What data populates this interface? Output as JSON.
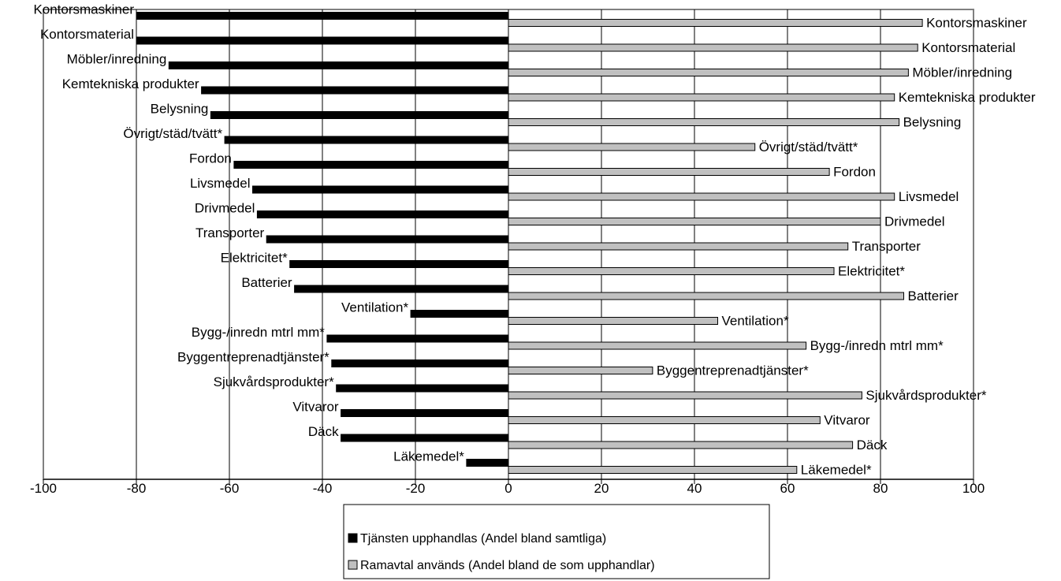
{
  "chart_data": {
    "type": "bar",
    "orientation": "horizontal",
    "grid": true,
    "xlim": [
      -100,
      100
    ],
    "x_ticks": [
      "-100",
      "-80",
      "-60",
      "-40",
      "-20",
      "0",
      "20",
      "40",
      "60",
      "80",
      "100"
    ],
    "legend_position": "bottom-center",
    "categories": [
      "Kontorsmaskiner",
      "Kontorsmaterial",
      "Möbler/inredning",
      "Kemtekniska produkter",
      "Belysning",
      "Övrigt/städ/tvätt*",
      "Fordon",
      "Livsmedel",
      "Drivmedel",
      "Transporter",
      "Elektricitet*",
      "Batterier",
      "Ventilation*",
      "Bygg-/inredn mtrl mm*",
      "Byggentreprenadtjänster*",
      "Sjukvårdsprodukter*",
      "Vitvaror",
      "Däck",
      "Läkemedel*"
    ],
    "series": [
      {
        "name": "Tjänsten upphandlas (Andel bland samtliga)",
        "color": "#000000",
        "values": [
          -80,
          -80,
          -73,
          -66,
          -64,
          -61,
          -59,
          -55,
          -54,
          -52,
          -47,
          -46,
          -21,
          -39,
          -38,
          -37,
          -36,
          -36,
          -9
        ]
      },
      {
        "name": "Ramavtal används (Andel bland de som upphandlar)",
        "color": "#c0c0c0",
        "values": [
          89,
          88,
          86,
          83,
          84,
          53,
          69,
          83,
          80,
          73,
          70,
          85,
          45,
          64,
          31,
          76,
          67,
          74,
          62
        ]
      }
    ]
  }
}
